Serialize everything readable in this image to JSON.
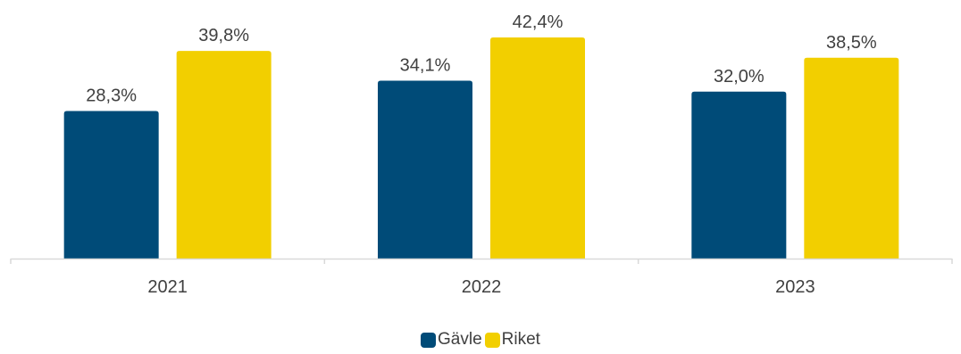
{
  "chart_data": {
    "type": "bar",
    "categories": [
      "2021",
      "2022",
      "2023"
    ],
    "series": [
      {
        "name": "Gävle",
        "values": [
          28.3,
          34.1,
          32.0
        ],
        "labels": [
          "28,3%",
          "34,1%",
          "32,0%"
        ],
        "color": "#004b78"
      },
      {
        "name": "Riket",
        "values": [
          39.8,
          42.4,
          38.5
        ],
        "labels": [
          "39,8%",
          "42,4%",
          "38,5%"
        ],
        "color": "#f2cf00"
      }
    ],
    "ylim": [
      0,
      50
    ],
    "grid": false,
    "legend": "bottom",
    "axis_color": "#d9d9d9",
    "text_color": "#404040"
  }
}
